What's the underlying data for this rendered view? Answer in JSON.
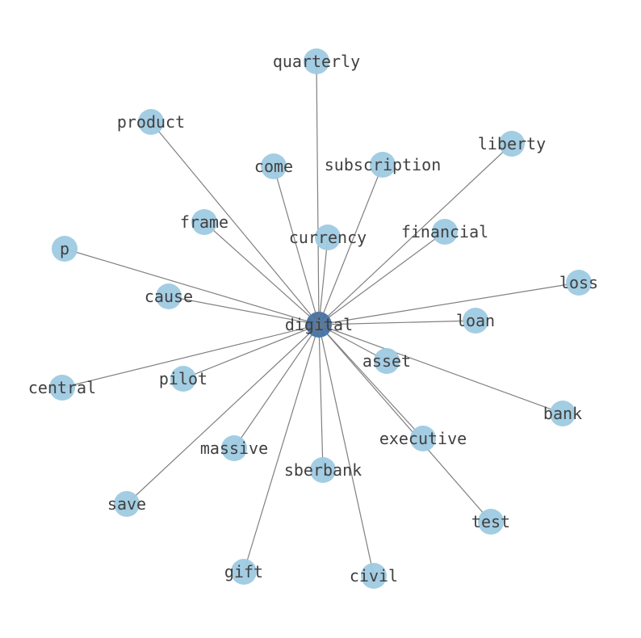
{
  "graph": {
    "center": "digital",
    "colors": {
      "center_node": "#3a70ab",
      "leaf_node": "#9ecae1",
      "edge": "#808080",
      "label": "#404040"
    },
    "nodes": [
      "digital",
      "quarterly",
      "product",
      "liberty",
      "come",
      "subscription",
      "frame",
      "currency",
      "financial",
      "p",
      "loss",
      "cause",
      "loan",
      "asset",
      "central",
      "pilot",
      "bank",
      "executive",
      "massive",
      "sberbank",
      "save",
      "test",
      "gift",
      "civil"
    ],
    "edges": [
      [
        "digital",
        "quarterly"
      ],
      [
        "digital",
        "product"
      ],
      [
        "digital",
        "liberty"
      ],
      [
        "digital",
        "come"
      ],
      [
        "digital",
        "subscription"
      ],
      [
        "digital",
        "frame"
      ],
      [
        "digital",
        "currency"
      ],
      [
        "digital",
        "financial"
      ],
      [
        "digital",
        "p"
      ],
      [
        "digital",
        "loss"
      ],
      [
        "digital",
        "cause"
      ],
      [
        "digital",
        "loan"
      ],
      [
        "digital",
        "asset"
      ],
      [
        "digital",
        "central"
      ],
      [
        "digital",
        "pilot"
      ],
      [
        "digital",
        "bank"
      ],
      [
        "digital",
        "executive"
      ],
      [
        "digital",
        "massive"
      ],
      [
        "digital",
        "sberbank"
      ],
      [
        "digital",
        "save"
      ],
      [
        "digital",
        "test"
      ],
      [
        "digital",
        "gift"
      ],
      [
        "digital",
        "civil"
      ]
    ]
  }
}
